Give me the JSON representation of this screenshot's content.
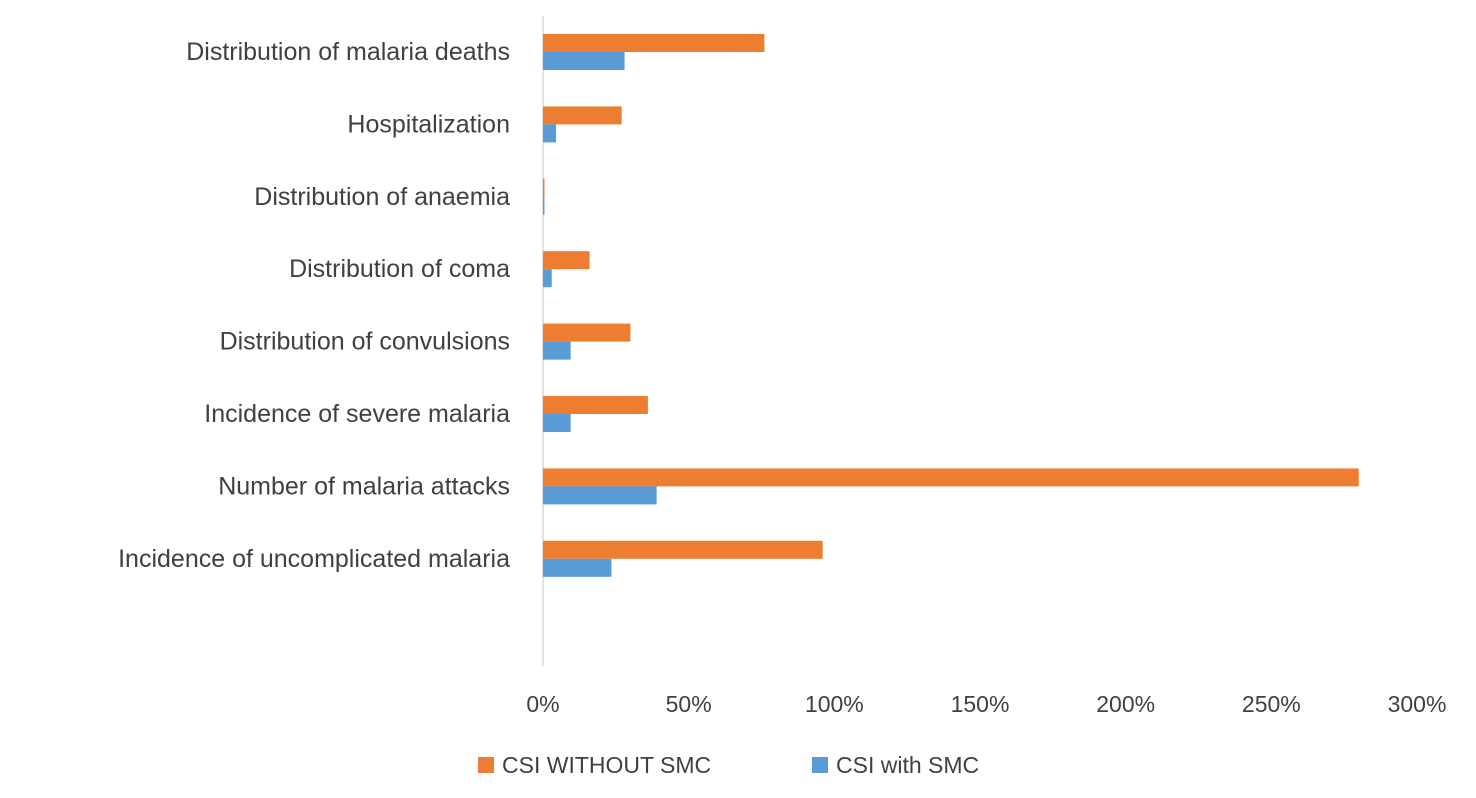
{
  "chart_data": {
    "type": "bar",
    "orientation": "horizontal",
    "categories": [
      "Distribution of malaria deaths",
      "Hospitalization",
      "Distribution of anaemia",
      "Distribution of coma",
      "Distribution of convulsions",
      "Incidence of severe malaria",
      "Number of malaria attacks",
      "Incidence of uncomplicated malaria"
    ],
    "series": [
      {
        "name": "CSI WITHOUT SMC",
        "color": "#ED7D31",
        "values": [
          76,
          27,
          0.5,
          16,
          30,
          36,
          280,
          96
        ]
      },
      {
        "name": "CSI with SMC",
        "color": "#5B9BD5",
        "values": [
          28,
          4.5,
          0.5,
          3,
          9.5,
          9.5,
          39,
          23.5
        ]
      }
    ],
    "xlim": [
      0,
      300
    ],
    "x_ticks": [
      "0%",
      "50%",
      "100%",
      "150%",
      "200%",
      "250%",
      "300%"
    ],
    "x_tick_values": [
      0,
      50,
      100,
      150,
      200,
      250,
      300
    ],
    "legend_position": "bottom",
    "grid": false,
    "title": "",
    "xlabel": "",
    "ylabel": ""
  }
}
